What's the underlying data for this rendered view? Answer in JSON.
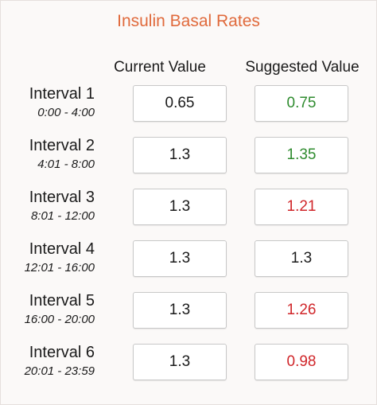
{
  "title": "Insulin Basal Rates",
  "headers": {
    "current": "Current Value",
    "suggested": "Suggested Value"
  },
  "colors": {
    "title": "#e06a3c",
    "increase": "#2e8b2e",
    "decrease": "#d0262a",
    "unchanged": "#1a1a1a"
  },
  "intervals": [
    {
      "name": "Interval 1",
      "range": "0:00 - 4:00",
      "current": "0.65",
      "suggested": "0.75",
      "trend": "up"
    },
    {
      "name": "Interval 2",
      "range": "4:01 - 8:00",
      "current": "1.3",
      "suggested": "1.35",
      "trend": "up"
    },
    {
      "name": "Interval 3",
      "range": "8:01 - 12:00",
      "current": "1.3",
      "suggested": "1.21",
      "trend": "down"
    },
    {
      "name": "Interval 4",
      "range": "12:01 - 16:00",
      "current": "1.3",
      "suggested": "1.3",
      "trend": "same"
    },
    {
      "name": "Interval 5",
      "range": "16:00 - 20:00",
      "current": "1.3",
      "suggested": "1.26",
      "trend": "down"
    },
    {
      "name": "Interval 6",
      "range": "20:01 - 23:59",
      "current": "1.3",
      "suggested": "0.98",
      "trend": "down"
    }
  ]
}
